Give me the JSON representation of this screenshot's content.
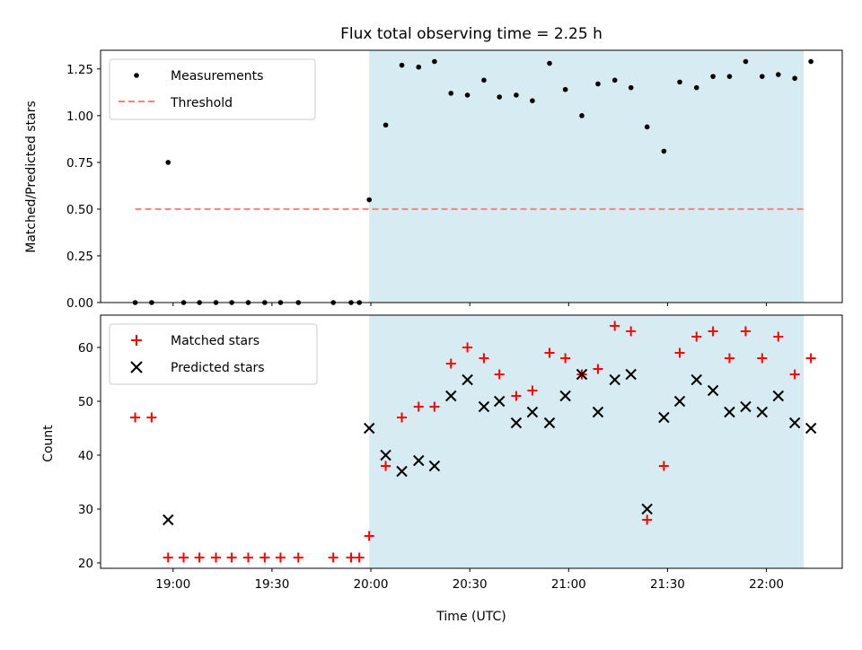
{
  "chart_data": [
    {
      "type": "scatter",
      "title": "Flux total observing time = 2.25 h",
      "xlabel": "",
      "ylabel": "Matched/Predicted stars",
      "xlim": [
        1118,
        1343
      ],
      "ylim": [
        0,
        1.35
      ],
      "yticks": [
        0.0,
        0.25,
        0.5,
        0.75,
        1.0,
        1.25
      ],
      "ytick_labels": [
        "0.00",
        "0.25",
        "0.50",
        "0.75",
        "1.00",
        "1.25"
      ],
      "observing_window": [
        1199.5,
        1331.3
      ],
      "threshold": {
        "name": "Threshold",
        "value": 0.5,
        "x": [
          1128.5,
          1331.3
        ],
        "color": "#ff7f7f"
      },
      "legend_position": "upper-left",
      "series": [
        {
          "name": "Measurements",
          "color": "#000000",
          "points": [
            [
              1128.5,
              0
            ],
            [
              1133.5,
              0
            ],
            [
              1138.5,
              0.75
            ],
            [
              1143.2,
              0
            ],
            [
              1148,
              0
            ],
            [
              1153,
              0
            ],
            [
              1157.8,
              0
            ],
            [
              1162.8,
              0
            ],
            [
              1167.8,
              0
            ],
            [
              1172.6,
              0
            ],
            [
              1178,
              0
            ],
            [
              1188.6,
              0
            ],
            [
              1194,
              0
            ],
            [
              1196.5,
              0
            ],
            [
              1199.5,
              0.55
            ],
            [
              1204.5,
              0.95
            ],
            [
              1209.4,
              1.27
            ],
            [
              1214.5,
              1.26
            ],
            [
              1219.3,
              1.29
            ],
            [
              1224.3,
              1.12
            ],
            [
              1229.3,
              1.11
            ],
            [
              1234.3,
              1.19
            ],
            [
              1239,
              1.1
            ],
            [
              1244.1,
              1.11
            ],
            [
              1249,
              1.08
            ],
            [
              1254.2,
              1.28
            ],
            [
              1259,
              1.14
            ],
            [
              1264,
              1.0
            ],
            [
              1268.9,
              1.17
            ],
            [
              1274,
              1.19
            ],
            [
              1278.9,
              1.15
            ],
            [
              1283.8,
              0.94
            ],
            [
              1288.9,
              0.81
            ],
            [
              1293.7,
              1.18
            ],
            [
              1298.8,
              1.15
            ],
            [
              1303.8,
              1.21
            ],
            [
              1308.8,
              1.21
            ],
            [
              1313.7,
              1.29
            ],
            [
              1318.7,
              1.21
            ],
            [
              1323.6,
              1.22
            ],
            [
              1328.6,
              1.2
            ],
            [
              1333.5,
              1.29
            ]
          ]
        }
      ]
    },
    {
      "type": "scatter",
      "title": "",
      "xlabel": "Time (UTC)",
      "ylabel": "Count",
      "xlim": [
        1118,
        1343
      ],
      "ylim": [
        19,
        66
      ],
      "yticks": [
        20,
        30,
        40,
        50,
        60
      ],
      "ytick_labels": [
        "20",
        "30",
        "40",
        "50",
        "60"
      ],
      "xticks": [
        1140,
        1170,
        1200,
        1230,
        1260,
        1290,
        1320
      ],
      "xtick_labels": [
        "19:00",
        "19:30",
        "20:00",
        "20:30",
        "21:00",
        "21:30",
        "22:00"
      ],
      "observing_window": [
        1199.5,
        1331.3
      ],
      "legend_position": "upper-left",
      "series": [
        {
          "name": "Matched stars",
          "marker": "+",
          "color": "#ff0000",
          "points": [
            [
              1128.5,
              47
            ],
            [
              1133.5,
              47
            ],
            [
              1138.5,
              21
            ],
            [
              1143.2,
              21
            ],
            [
              1148,
              21
            ],
            [
              1153,
              21
            ],
            [
              1157.8,
              21
            ],
            [
              1162.8,
              21
            ],
            [
              1167.8,
              21
            ],
            [
              1172.6,
              21
            ],
            [
              1178,
              21
            ],
            [
              1188.6,
              21
            ],
            [
              1194,
              21
            ],
            [
              1196.5,
              21
            ],
            [
              1199.5,
              25
            ],
            [
              1204.5,
              38
            ],
            [
              1209.4,
              47
            ],
            [
              1214.5,
              49
            ],
            [
              1219.3,
              49
            ],
            [
              1224.3,
              57
            ],
            [
              1229.3,
              60
            ],
            [
              1234.3,
              58
            ],
            [
              1239,
              55
            ],
            [
              1244.1,
              51
            ],
            [
              1249,
              52
            ],
            [
              1254.2,
              59
            ],
            [
              1259,
              58
            ],
            [
              1264,
              55
            ],
            [
              1268.9,
              56
            ],
            [
              1274,
              64
            ],
            [
              1278.9,
              63
            ],
            [
              1283.8,
              28
            ],
            [
              1288.9,
              38
            ],
            [
              1293.7,
              59
            ],
            [
              1298.8,
              62
            ],
            [
              1303.8,
              63
            ],
            [
              1308.8,
              58
            ],
            [
              1313.7,
              63
            ],
            [
              1318.7,
              58
            ],
            [
              1323.6,
              62
            ],
            [
              1328.6,
              55
            ],
            [
              1333.5,
              58
            ]
          ]
        },
        {
          "name": "Predicted stars",
          "marker": "x",
          "color": "#000000",
          "points": [
            [
              1138.5,
              28
            ],
            [
              1199.5,
              45
            ],
            [
              1204.5,
              40
            ],
            [
              1209.4,
              37
            ],
            [
              1214.5,
              39
            ],
            [
              1219.3,
              38
            ],
            [
              1224.3,
              51
            ],
            [
              1229.3,
              54
            ],
            [
              1234.3,
              49
            ],
            [
              1239,
              50
            ],
            [
              1244.1,
              46
            ],
            [
              1249,
              48
            ],
            [
              1254.2,
              46
            ],
            [
              1259,
              51
            ],
            [
              1264,
              55
            ],
            [
              1268.9,
              48
            ],
            [
              1274,
              54
            ],
            [
              1278.9,
              55
            ],
            [
              1283.8,
              30
            ],
            [
              1288.9,
              47
            ],
            [
              1293.7,
              50
            ],
            [
              1298.8,
              54
            ],
            [
              1303.8,
              52
            ],
            [
              1308.8,
              48
            ],
            [
              1313.7,
              49
            ],
            [
              1318.7,
              48
            ],
            [
              1323.6,
              51
            ],
            [
              1328.6,
              46
            ],
            [
              1333.5,
              45
            ]
          ]
        }
      ]
    }
  ],
  "colors": {
    "window": "#add8e6",
    "frame": "#000000"
  }
}
